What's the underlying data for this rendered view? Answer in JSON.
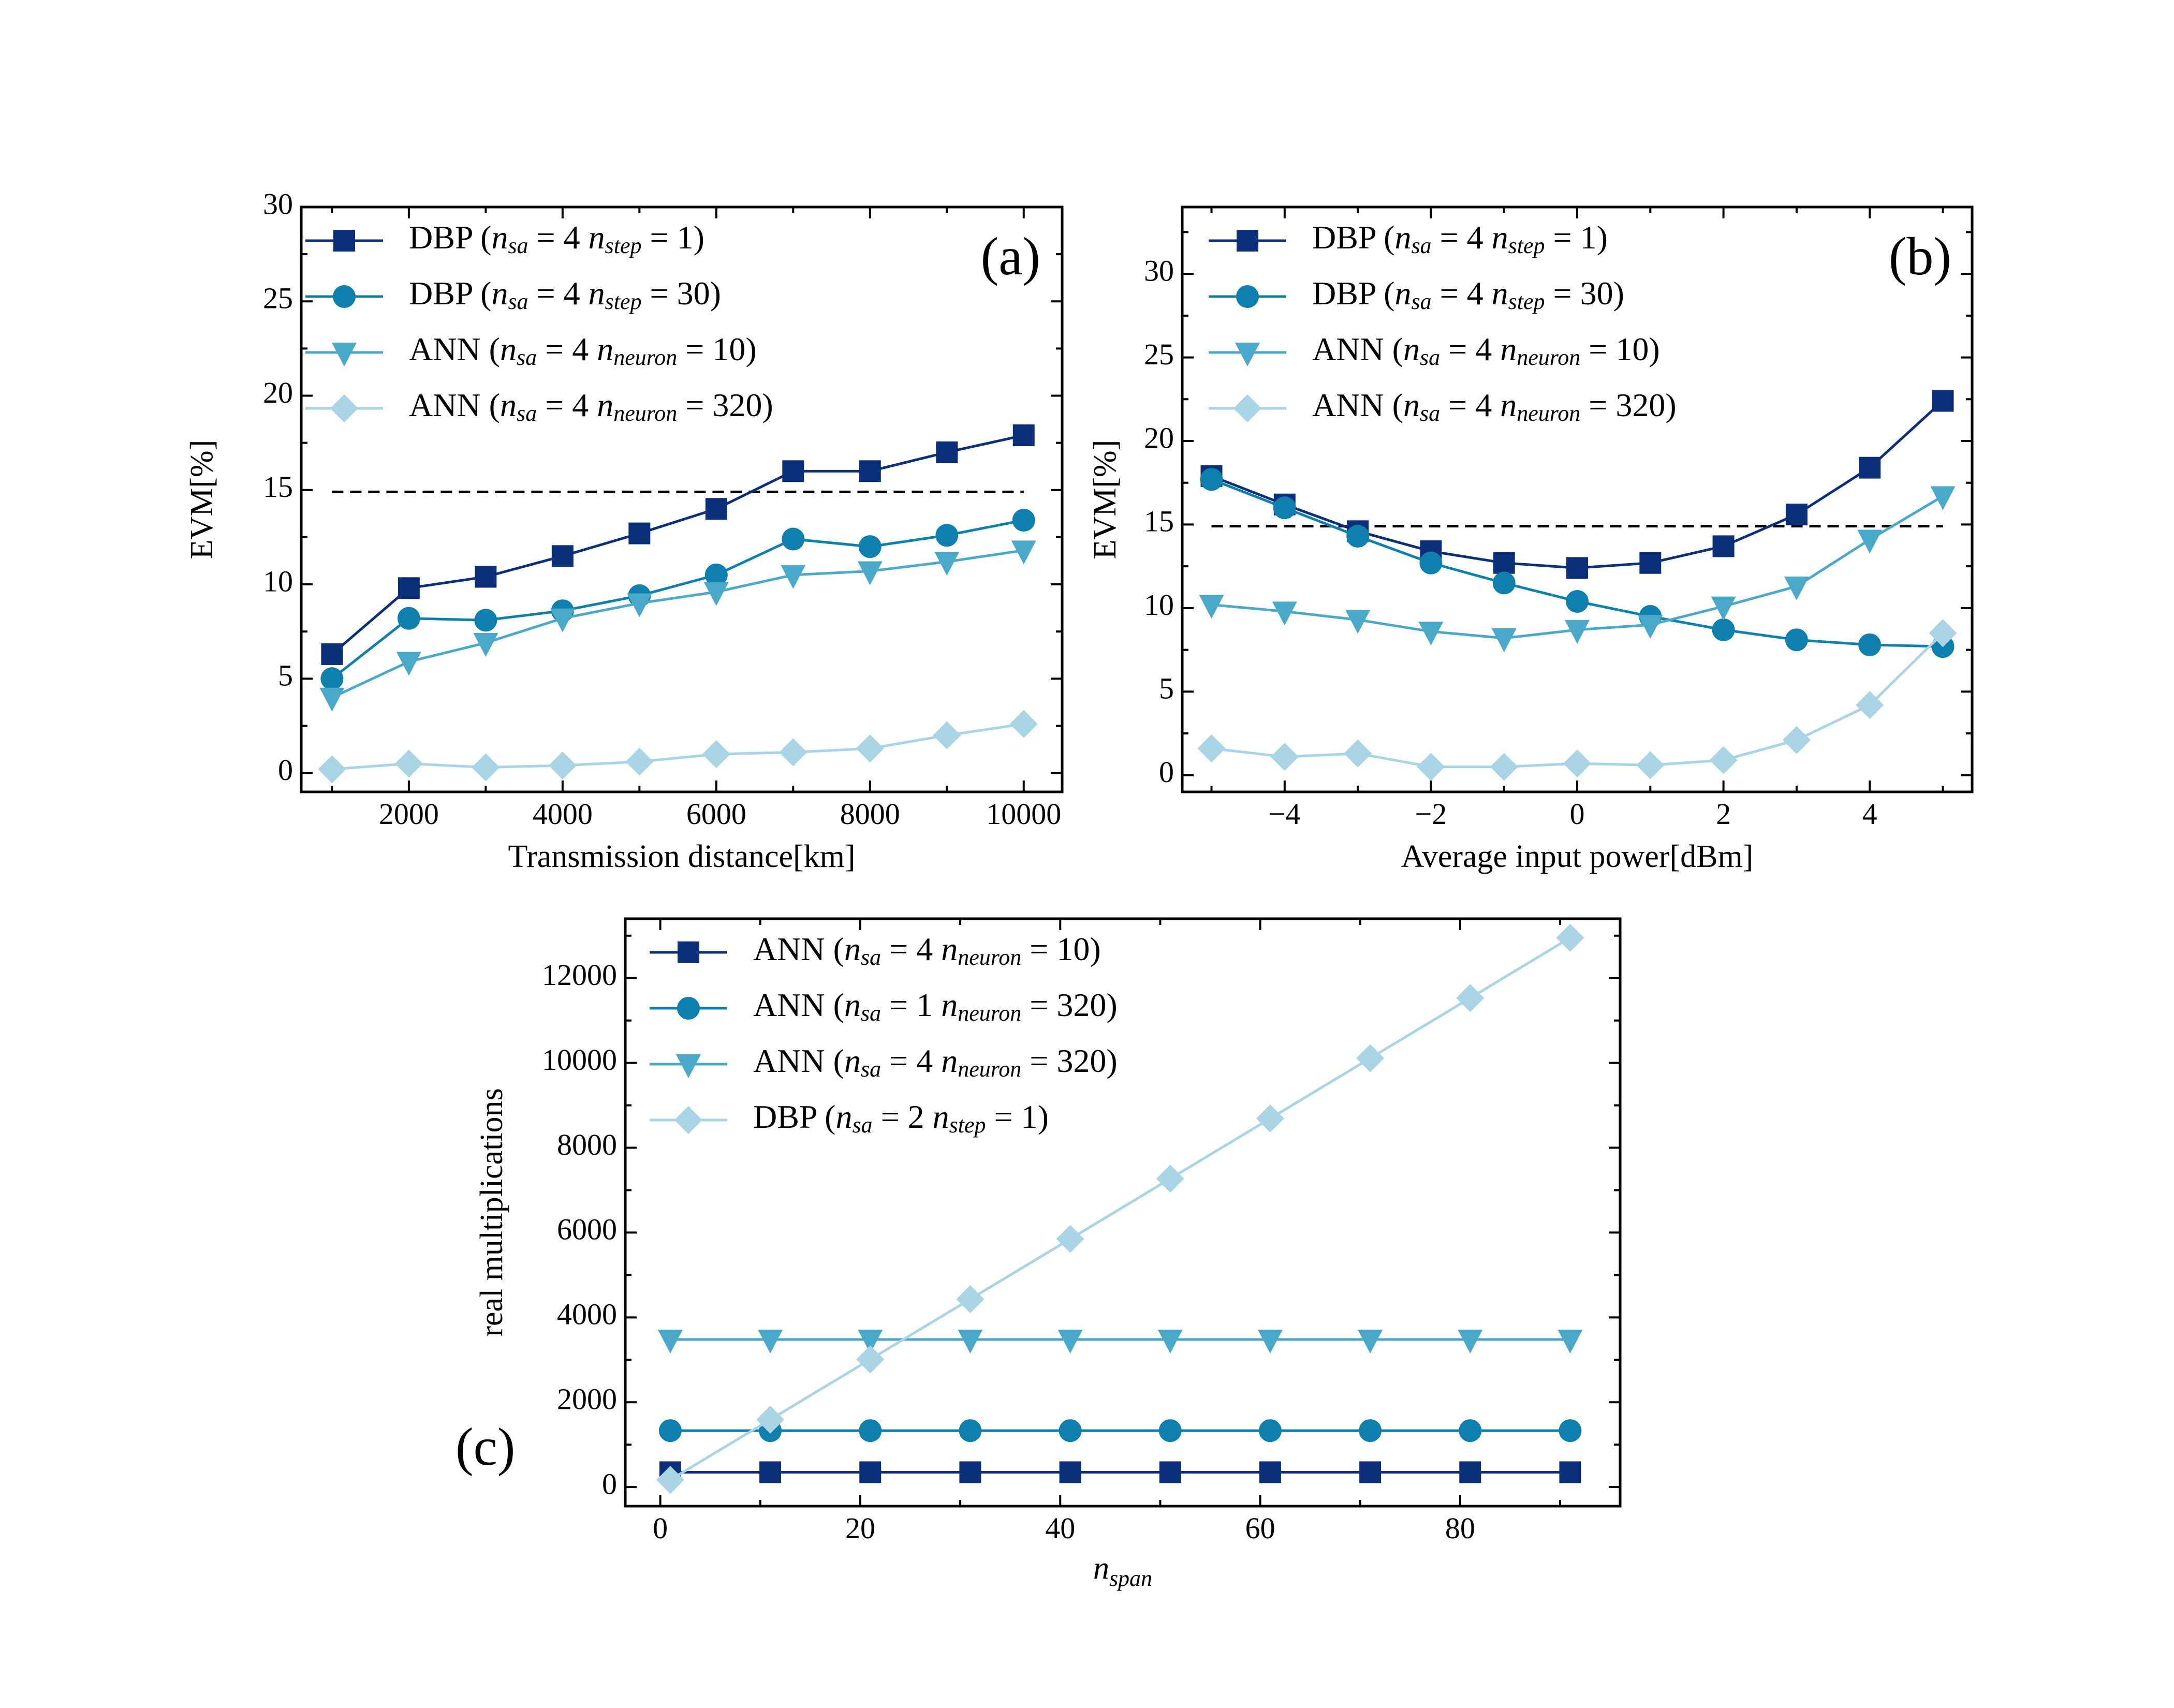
{
  "chart_data": [
    {
      "type": "line",
      "panel_label": "(a)",
      "xlabel": "Transmission distance[km]",
      "ylabel": "EVM[%]",
      "xlim": [
        600,
        10500
      ],
      "ylim": [
        -1,
        30
      ],
      "xticks": [
        2000,
        4000,
        6000,
        8000,
        10000
      ],
      "yticks": [
        0,
        5,
        10,
        15,
        20,
        25,
        30
      ],
      "xtick_labels": [
        "2000",
        "4000",
        "6000",
        "8000",
        "10000"
      ],
      "ytick_labels": [
        "0",
        "5",
        "10",
        "15",
        "20",
        "25",
        "30"
      ],
      "threshold": {
        "y": 14.9,
        "x": [
          1000,
          10000
        ]
      },
      "legend_position": "upper-left",
      "grid": false,
      "x": [
        1000,
        2000,
        3000,
        4000,
        5000,
        6000,
        7000,
        8000,
        9000,
        10000
      ],
      "series": [
        {
          "name": "DBP",
          "params": [
            {
              "sym": "n",
              "sub": "sa",
              "val": "= 4"
            },
            {
              "sym": " n",
              "sub": "step",
              "val": "= 1"
            }
          ],
          "marker": "square",
          "color": "#0b2f78",
          "values": [
            6.3,
            9.8,
            10.4,
            11.5,
            12.7,
            14.0,
            16.0,
            16.0,
            17.0,
            17.9
          ]
        },
        {
          "name": "DBP",
          "params": [
            {
              "sym": "n",
              "sub": "sa",
              "val": "= 4"
            },
            {
              "sym": " n",
              "sub": "step",
              "val": "= 30"
            }
          ],
          "marker": "circle",
          "color": "#0f7fae",
          "values": [
            5.0,
            8.2,
            8.1,
            8.6,
            9.4,
            10.5,
            12.4,
            12.0,
            12.6,
            13.4
          ]
        },
        {
          "name": "ANN",
          "params": [
            {
              "sym": "n",
              "sub": "sa",
              "val": "= 4"
            },
            {
              "sym": " n",
              "sub": "neuron",
              "val": "= 10"
            }
          ],
          "marker": "triangle-down",
          "color": "#4aa8c9",
          "values": [
            4.0,
            5.9,
            6.9,
            8.2,
            9.0,
            9.6,
            10.5,
            10.7,
            11.2,
            11.8
          ]
        },
        {
          "name": "ANN",
          "params": [
            {
              "sym": "n",
              "sub": "sa",
              "val": "= 4"
            },
            {
              "sym": " n",
              "sub": "neuron",
              "val": "= 320"
            }
          ],
          "marker": "diamond",
          "color": "#a8d4e5",
          "values": [
            0.2,
            0.5,
            0.3,
            0.4,
            0.6,
            1.0,
            1.1,
            1.3,
            2.0,
            2.6
          ]
        }
      ]
    },
    {
      "type": "line",
      "panel_label": "(b)",
      "xlabel": "Average input power[dBm]",
      "ylabel": "EVM[%]",
      "xlim": [
        -5.4,
        5.4
      ],
      "ylim": [
        -1,
        34
      ],
      "xticks": [
        -4,
        -2,
        0,
        2,
        4
      ],
      "yticks": [
        0,
        5,
        10,
        15,
        20,
        25,
        30
      ],
      "xtick_labels": [
        "−4",
        "−2",
        "0",
        "2",
        "4"
      ],
      "ytick_labels": [
        "0",
        "5",
        "10",
        "15",
        "20",
        "25",
        "30"
      ],
      "threshold": {
        "y": 14.9,
        "x": [
          -5,
          5
        ]
      },
      "legend_position": "upper-left",
      "grid": false,
      "x": [
        -5,
        -4,
        -3,
        -2,
        -1,
        0,
        1,
        2,
        3,
        4,
        5
      ],
      "series": [
        {
          "name": "DBP",
          "params": [
            {
              "sym": "n",
              "sub": "sa",
              "val": "= 4"
            },
            {
              "sym": " n",
              "sub": "step",
              "val": "= 1"
            }
          ],
          "marker": "square",
          "color": "#0b2f78",
          "values": [
            17.9,
            16.2,
            14.6,
            13.4,
            12.7,
            12.4,
            12.7,
            13.7,
            15.6,
            18.4,
            22.4
          ]
        },
        {
          "name": "DBP",
          "params": [
            {
              "sym": "n",
              "sub": "sa",
              "val": "= 4"
            },
            {
              "sym": " n",
              "sub": "step",
              "val": "= 30"
            }
          ],
          "marker": "circle",
          "color": "#0f7fae",
          "values": [
            17.7,
            16.0,
            14.3,
            12.7,
            11.5,
            10.4,
            9.5,
            8.7,
            8.1,
            7.8,
            7.7
          ]
        },
        {
          "name": "ANN",
          "params": [
            {
              "sym": "n",
              "sub": "sa",
              "val": "= 4"
            },
            {
              "sym": " n",
              "sub": "neuron",
              "val": "= 10"
            }
          ],
          "marker": "triangle-down",
          "color": "#4aa8c9",
          "values": [
            10.2,
            9.8,
            9.3,
            8.6,
            8.2,
            8.7,
            9.0,
            10.1,
            11.3,
            14.1,
            16.7
          ]
        },
        {
          "name": "ANN",
          "params": [
            {
              "sym": "n",
              "sub": "sa",
              "val": "= 4"
            },
            {
              "sym": " n",
              "sub": "neuron",
              "val": "= 320"
            }
          ],
          "marker": "diamond",
          "color": "#a8d4e5",
          "values": [
            1.6,
            1.1,
            1.3,
            0.5,
            0.5,
            0.7,
            0.6,
            0.9,
            2.1,
            4.2,
            8.5
          ]
        }
      ]
    },
    {
      "type": "line",
      "panel_label": "(c)",
      "xlabel": "",
      "xlabel_math": {
        "sym": "n",
        "sub": "span"
      },
      "ylabel": "real multiplications",
      "xlim": [
        -3.5,
        96
      ],
      "ylim": [
        -450,
        13400
      ],
      "xticks": [
        0,
        20,
        40,
        60,
        80
      ],
      "yticks": [
        0,
        2000,
        4000,
        6000,
        8000,
        10000,
        12000
      ],
      "xtick_labels": [
        "0",
        "20",
        "40",
        "60",
        "80"
      ],
      "ytick_labels": [
        "0",
        "2000",
        "4000",
        "6000",
        "8000",
        "10000",
        "12000"
      ],
      "legend_position": "upper-left",
      "grid": false,
      "x": [
        1,
        11,
        21,
        31,
        41,
        51,
        61,
        71,
        81,
        91
      ],
      "series": [
        {
          "name": "ANN",
          "params": [
            {
              "sym": "n",
              "sub": "sa",
              "val": "= 4"
            },
            {
              "sym": " n",
              "sub": "neuron",
              "val": "= 10"
            }
          ],
          "marker": "square",
          "color": "#0b2f78",
          "values": [
            350,
            350,
            350,
            350,
            350,
            350,
            350,
            350,
            350,
            350
          ]
        },
        {
          "name": "ANN",
          "params": [
            {
              "sym": "n",
              "sub": "sa",
              "val": "= 1"
            },
            {
              "sym": " n",
              "sub": "neuron",
              "val": "= 320"
            }
          ],
          "marker": "circle",
          "color": "#0f7fae",
          "values": [
            1330,
            1330,
            1330,
            1330,
            1330,
            1330,
            1330,
            1330,
            1330,
            1330
          ]
        },
        {
          "name": "ANN",
          "params": [
            {
              "sym": "n",
              "sub": "sa",
              "val": "= 4"
            },
            {
              "sym": " n",
              "sub": "neuron",
              "val": "= 320"
            }
          ],
          "marker": "triangle-down",
          "color": "#4aa8c9",
          "values": [
            3480,
            3480,
            3480,
            3480,
            3480,
            3480,
            3480,
            3480,
            3480,
            3480
          ]
        },
        {
          "name": "DBP",
          "params": [
            {
              "sym": "n",
              "sub": "sa",
              "val": "= 2"
            },
            {
              "sym": " n",
              "sub": "step",
              "val": "= 1"
            }
          ],
          "marker": "diamond",
          "color": "#a8d4e5",
          "values": [
            170,
            1590,
            3010,
            4430,
            5850,
            7270,
            8690,
            10110,
            11530,
            12950
          ]
        }
      ]
    }
  ]
}
